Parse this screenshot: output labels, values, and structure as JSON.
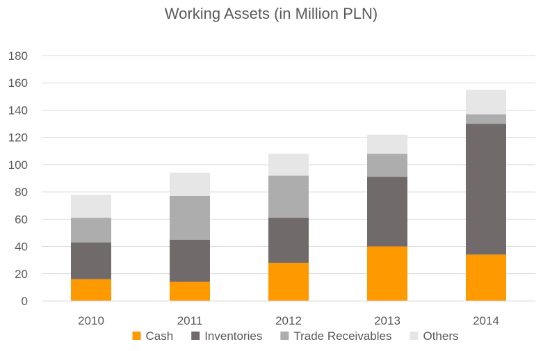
{
  "chart_data": {
    "type": "bar",
    "stacked": true,
    "title": "Working Assets (in Million PLN)",
    "categories": [
      "2010",
      "2011",
      "2012",
      "2013",
      "2014"
    ],
    "series": [
      {
        "name": "Cash",
        "color": "#FF9900",
        "values": [
          16,
          14,
          28,
          40,
          34
        ]
      },
      {
        "name": "Inventories",
        "color": "#706B6A",
        "values": [
          27,
          31,
          33,
          51,
          96
        ]
      },
      {
        "name": "Trade Receivables",
        "color": "#ADADAD",
        "values": [
          18,
          32,
          31,
          17,
          7
        ]
      },
      {
        "name": "Others",
        "color": "#E6E6E6",
        "values": [
          17,
          17,
          16,
          14,
          18
        ]
      }
    ],
    "ylim": [
      0,
      180
    ],
    "yticks": [
      "0",
      "20",
      "40",
      "60",
      "80",
      "100",
      "120",
      "140",
      "160",
      "180"
    ],
    "xlabel": "",
    "ylabel": "",
    "grid": true,
    "legend_position": "bottom"
  }
}
